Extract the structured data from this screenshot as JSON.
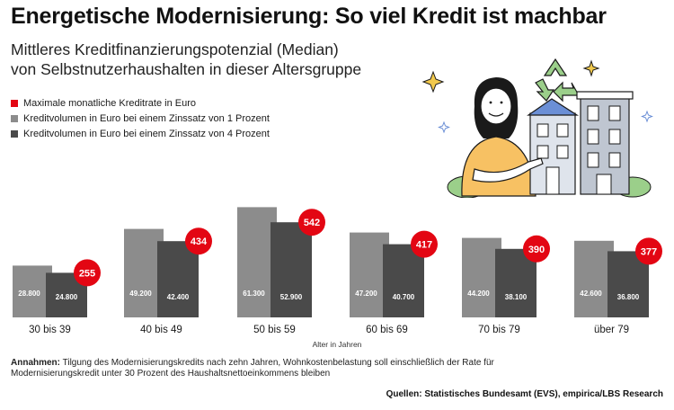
{
  "header": {
    "title": "Energetische Modernisierung: So viel Kredit ist machbar",
    "subtitle_line1": "Mittleres Kreditfinanzierungspotenzial (Median)",
    "subtitle_line2": "von Selbstnutzerhaushalten in dieser Altersgruppe"
  },
  "legend": {
    "items": [
      {
        "label": "Maximale monatliche Kreditrate in Euro",
        "color": "#e30613"
      },
      {
        "label": "Kreditvolumen in Euro bei einem Zinssatz von 1 Prozent",
        "color": "#8c8c8c"
      },
      {
        "label": "Kreditvolumen in Euro bei einem Zinssatz von 4 Prozent",
        "color": "#4a4a4a"
      }
    ]
  },
  "chart_data": {
    "type": "bar",
    "categories": [
      "30 bis 39",
      "40 bis 49",
      "50 bis 59",
      "60 bis 69",
      "70 bis 79",
      "über 79"
    ],
    "series": [
      {
        "name": "Kreditvolumen in Euro bei einem Zinssatz von 1 Prozent",
        "values": [
          28800,
          49200,
          61300,
          47200,
          44200,
          42600
        ],
        "labels": [
          "28.800",
          "49.200",
          "61.300",
          "47.200",
          "44.200",
          "42.600"
        ],
        "color": "#8c8c8c"
      },
      {
        "name": "Kreditvolumen in Euro bei einem Zinssatz von 4 Prozent",
        "values": [
          24800,
          42400,
          52900,
          40700,
          38100,
          36800
        ],
        "labels": [
          "24.800",
          "42.400",
          "52.900",
          "40.700",
          "38.100",
          "36.800"
        ],
        "color": "#4a4a4a"
      },
      {
        "name": "Maximale monatliche Kreditrate in Euro",
        "values": [
          255,
          434,
          542,
          417,
          390,
          377
        ],
        "labels": [
          "255",
          "434",
          "542",
          "417",
          "390",
          "377"
        ],
        "color": "#e30613"
      }
    ],
    "xlabel": "Alter in Jahren",
    "ylim": [
      0,
      64000
    ],
    "grid": false
  },
  "footer": {
    "note_label": "Annahmen:",
    "note_text": "Tilgung des Modernisierungskredits nach zehn Jahren, Wohnkostenbelastung soll einschließlich der Rate für Modernisierungskredit unter 30 Prozent des Haushaltsnettoeinkommens bleiben",
    "source": "Quellen: Statistisches Bundesamt (EVS), empirica/LBS Research"
  },
  "illustration": {
    "icon": "woman-with-houses-recycling-icon"
  }
}
